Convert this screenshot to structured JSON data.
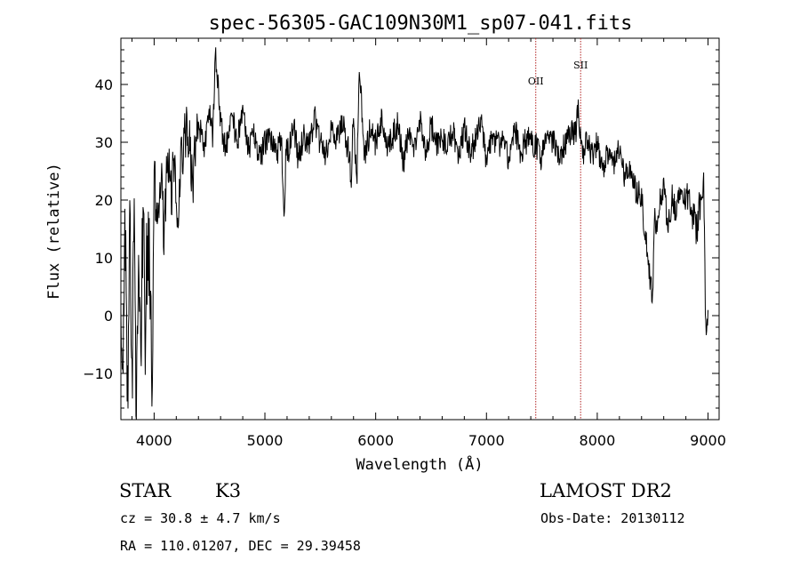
{
  "chart_data": {
    "type": "line",
    "title": "spec-56305-GAC109N30M1_sp07-041.fits",
    "xlabel": "Wavelength (Å)",
    "ylabel": "Flux (relative)",
    "xlim": [
      3700,
      9100
    ],
    "ylim": [
      -18,
      48
    ],
    "xticks": [
      4000,
      5000,
      6000,
      7000,
      8000,
      9000
    ],
    "yticks": [
      -10,
      0,
      10,
      20,
      30,
      40
    ],
    "series": [
      {
        "color": "#000000",
        "x": [
          3700,
          3720,
          3740,
          3760,
          3780,
          3800,
          3820,
          3840,
          3860,
          3880,
          3900,
          3920,
          3940,
          3960,
          3980,
          4000,
          4030,
          4060,
          4090,
          4120,
          4150,
          4180,
          4210,
          4250,
          4300,
          4350,
          4400,
          4450,
          4500,
          4530,
          4550,
          4600,
          4650,
          4700,
          4750,
          4800,
          4850,
          4900,
          4950,
          5000,
          5050,
          5100,
          5150,
          5170,
          5190,
          5220,
          5260,
          5300,
          5350,
          5400,
          5450,
          5500,
          5550,
          5600,
          5650,
          5700,
          5750,
          5780,
          5800,
          5830,
          5850,
          5900,
          5950,
          6000,
          6050,
          6100,
          6150,
          6200,
          6250,
          6300,
          6350,
          6400,
          6450,
          6500,
          6550,
          6600,
          6650,
          6700,
          6750,
          6800,
          6850,
          6900,
          6950,
          7000,
          7050,
          7100,
          7150,
          7200,
          7250,
          7300,
          7350,
          7400,
          7450,
          7500,
          7550,
          7600,
          7650,
          7700,
          7750,
          7800,
          7830,
          7850,
          7880,
          7900,
          7950,
          8000,
          8050,
          8100,
          8150,
          8200,
          8250,
          8300,
          8350,
          8400,
          8430,
          8460,
          8480,
          8500,
          8520,
          8540,
          8560,
          8600,
          8640,
          8680,
          8700,
          8750,
          8800,
          8850,
          8900,
          8920,
          8940,
          8960,
          8980,
          9000
        ],
        "y": [
          2,
          -10,
          16,
          -14,
          19,
          -12,
          18,
          -16,
          10,
          -8,
          19,
          -4,
          14,
          8,
          -12,
          24,
          16,
          26,
          12,
          30,
          20,
          26,
          18,
          28,
          32,
          24,
          34,
          28,
          36,
          30,
          46,
          33,
          29,
          35,
          30,
          36,
          29,
          31,
          27,
          30,
          31,
          28,
          30,
          17,
          28,
          29,
          33,
          27,
          31,
          29,
          34,
          30,
          28,
          32,
          30,
          33,
          29,
          24,
          36,
          22,
          43,
          28,
          32,
          30,
          34,
          29,
          31,
          33,
          26,
          32,
          29,
          34,
          28,
          33,
          30,
          31,
          29,
          32,
          27,
          33,
          28,
          30,
          34,
          26,
          32,
          29,
          31,
          27,
          33,
          28,
          30,
          31,
          29,
          27,
          33,
          30,
          28,
          29,
          32,
          31,
          36,
          30,
          27,
          31,
          28,
          30,
          25,
          28,
          26,
          29,
          24,
          25,
          22,
          20,
          15,
          10,
          6,
          4,
          18,
          14,
          20,
          22,
          15,
          21,
          18,
          22,
          20,
          17,
          14,
          20,
          16,
          23,
          -1,
          -1
        ]
      }
    ],
    "vlines": [
      {
        "label": "OII",
        "x": 7445
      },
      {
        "label": "SII",
        "x": 7850
      }
    ],
    "info": {
      "class_label": "STAR",
      "subclass_label": "K3",
      "survey": "LAMOST DR2",
      "cz_text": "cz = 30.8 ± 4.7 km/s",
      "obs_date_text": "Obs-Date: 20130112",
      "coords_text": "RA = 110.01207, DEC =  29.39458"
    },
    "colors": {
      "line": "#000000",
      "vline": "#b22222",
      "background": "#ffffff"
    }
  }
}
